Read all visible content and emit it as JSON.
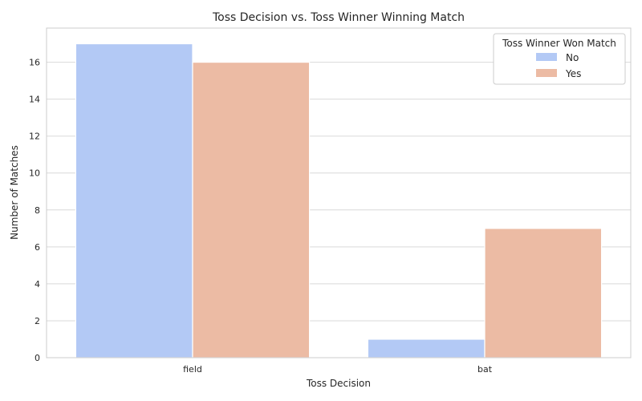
{
  "chart_data": {
    "type": "bar",
    "title": "Toss Decision vs. Toss Winner Winning Match",
    "xlabel": "Toss Decision",
    "ylabel": "Number of Matches",
    "categories": [
      "field",
      "bat"
    ],
    "series": [
      {
        "name": "No",
        "values": [
          17,
          1
        ],
        "color": "#b3c9f5"
      },
      {
        "name": "Yes",
        "values": [
          16,
          7
        ],
        "color": "#ecbba4"
      }
    ],
    "ylim": [
      0,
      17.85
    ],
    "yticks": [
      0,
      2,
      4,
      6,
      8,
      10,
      12,
      14,
      16
    ],
    "grid": true,
    "legend": {
      "title": "Toss Winner Won Match",
      "placement": "top-right"
    }
  }
}
